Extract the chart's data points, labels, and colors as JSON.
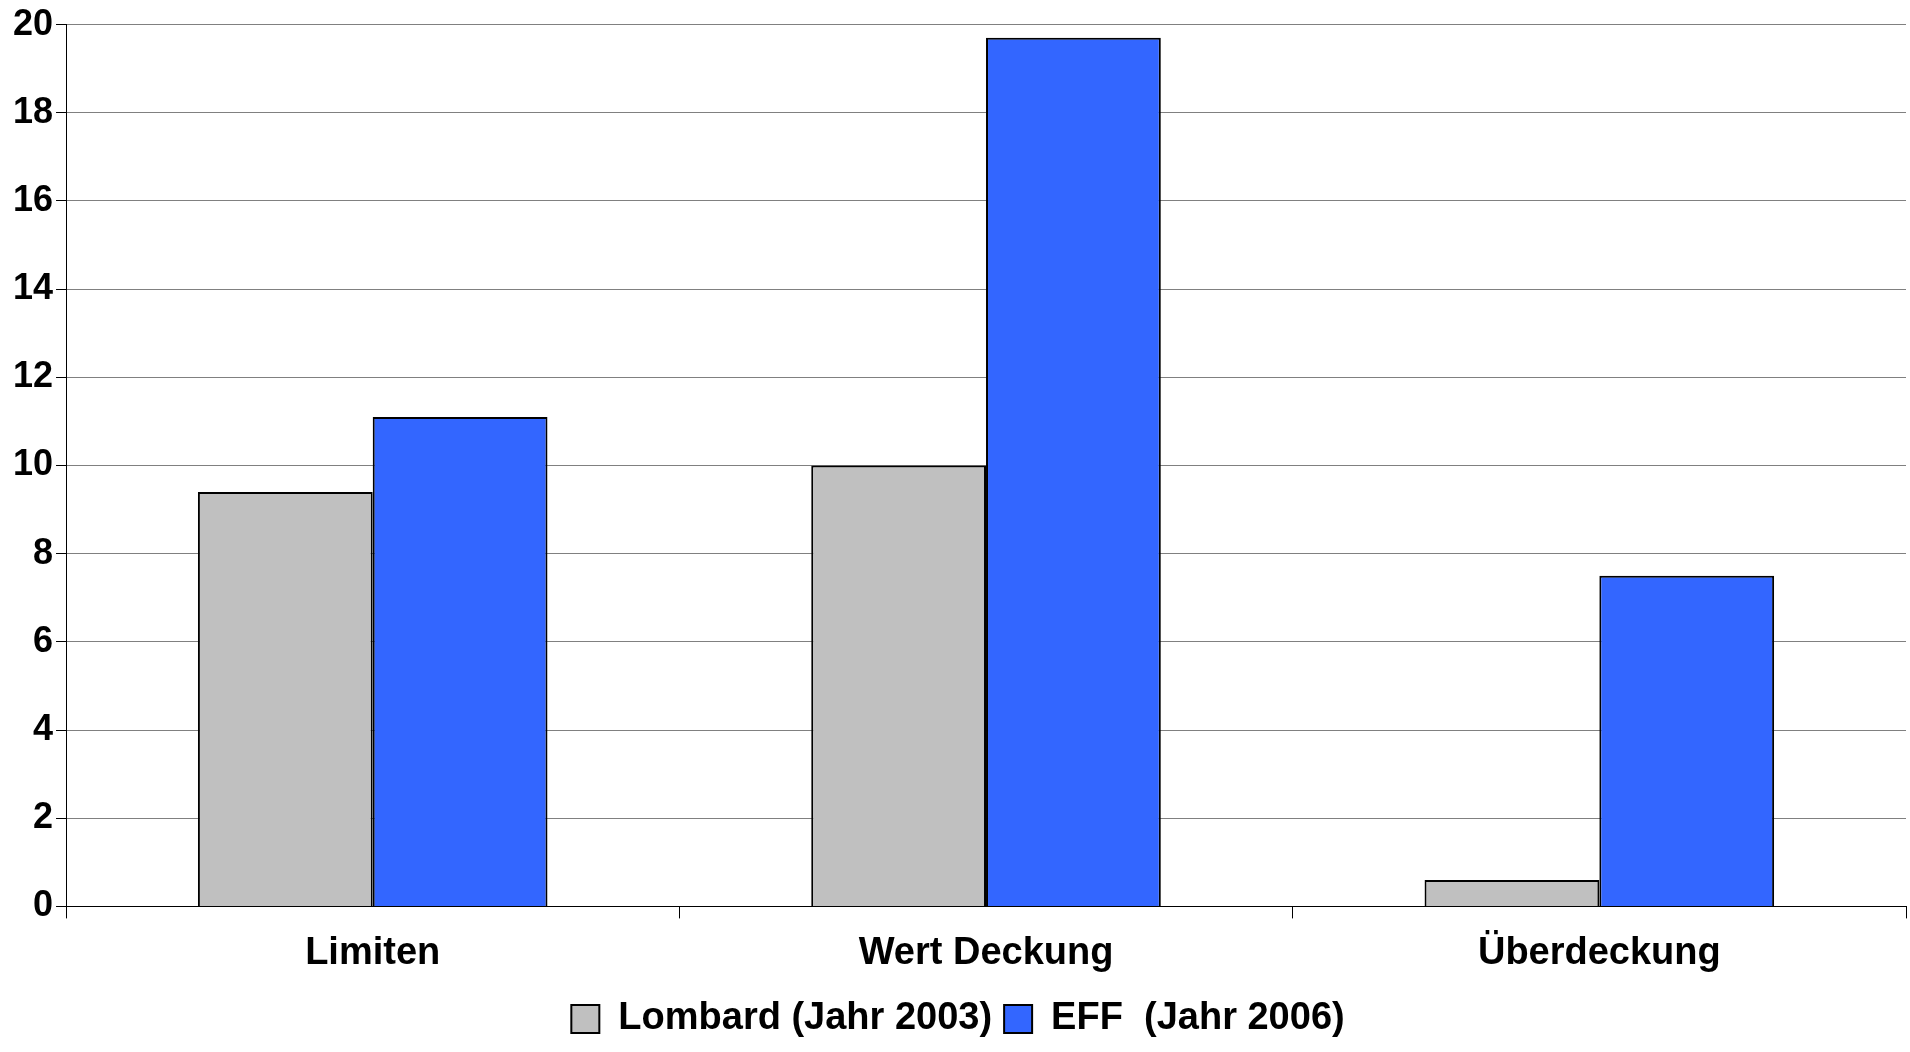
{
  "chart_data": {
    "type": "bar",
    "categories": [
      "Limiten",
      "Wert Deckung",
      "Überdeckung"
    ],
    "series": [
      {
        "name": "Lombard (Jahr 2003)",
        "color": "#c0c0c0",
        "values": [
          9.4,
          10,
          0.6
        ]
      },
      {
        "name": "EFF  (Jahr 2006)",
        "color": "#3366ff",
        "values": [
          11.1,
          19.7,
          7.5
        ]
      }
    ],
    "ylim": [
      0,
      20
    ],
    "yticks": [
      0,
      2,
      4,
      6,
      8,
      10,
      12,
      14,
      16,
      18,
      20
    ],
    "grid": "y",
    "legend": "bottom"
  }
}
